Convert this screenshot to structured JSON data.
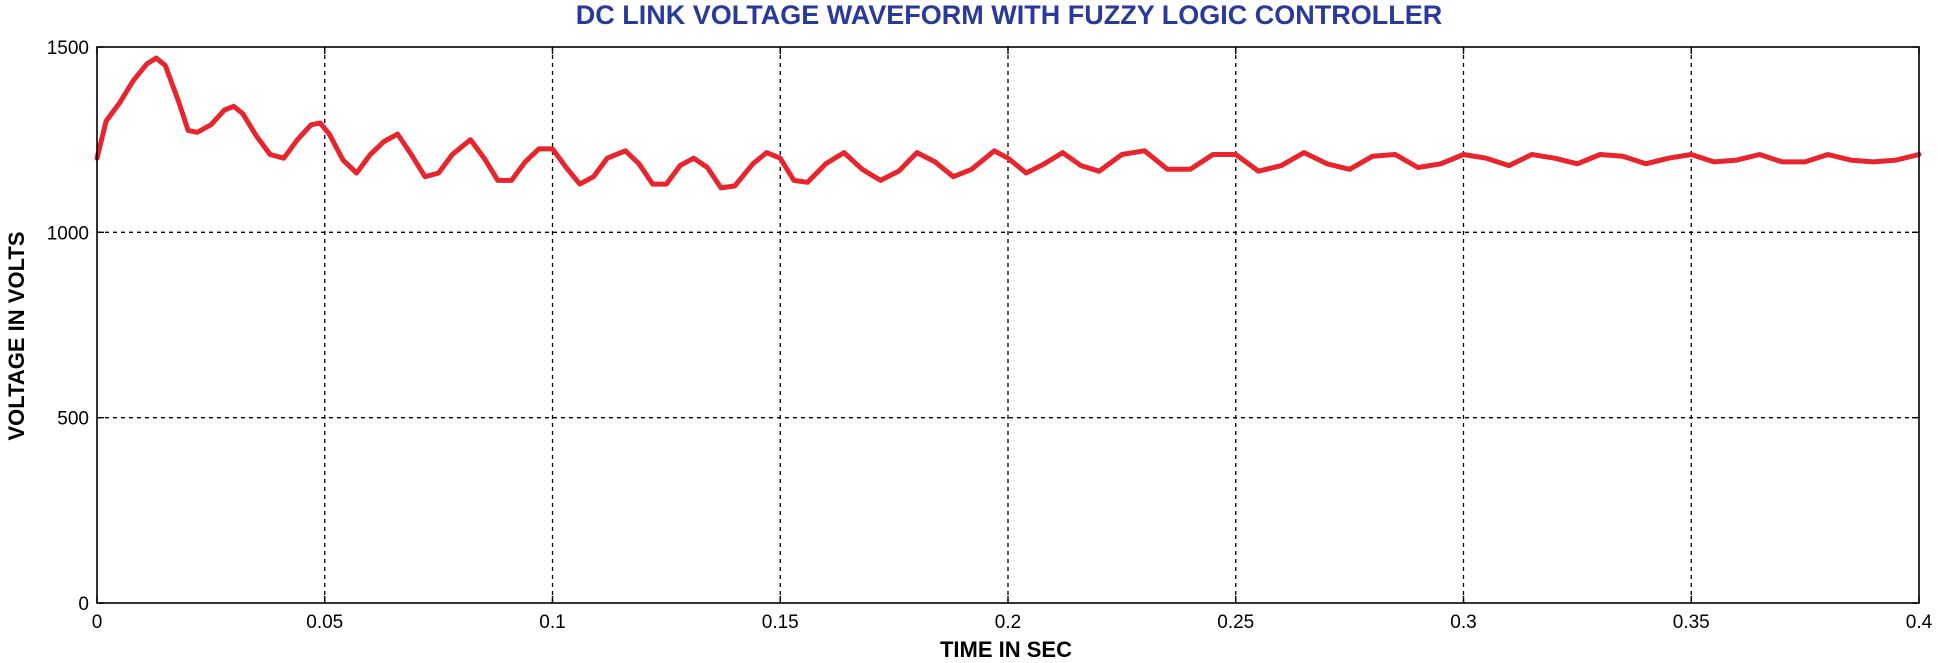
{
  "chart_data": {
    "type": "line",
    "title": "DC LINK VOLTAGE WAVEFORM WITH FUZZY LOGIC CONTROLLER",
    "xlabel": "TIME IN SEC",
    "ylabel": "VOLTAGE IN VOLTS",
    "xlim": [
      0,
      0.4
    ],
    "ylim": [
      0,
      1500
    ],
    "xticks": [
      0,
      0.05,
      0.1,
      0.15,
      0.2,
      0.25,
      0.3,
      0.35,
      0.4
    ],
    "xtick_labels": [
      "0",
      "0.05",
      "0.1",
      "0.15",
      "0.2",
      "0.25",
      "0.3",
      "0.35",
      "0.4"
    ],
    "yticks": [
      0,
      500,
      1000,
      1500
    ],
    "ytick_labels": [
      "0",
      "500",
      "1000",
      "1500"
    ],
    "grid": true,
    "colors": {
      "series": "#e8242c",
      "title": "#2a3a9c"
    },
    "series": [
      {
        "x": [
          0,
          0.002,
          0.005,
          0.008,
          0.011,
          0.013,
          0.015,
          0.018,
          0.02,
          0.022,
          0.025,
          0.028,
          0.03,
          0.032,
          0.035,
          0.038,
          0.041,
          0.044,
          0.047,
          0.049,
          0.051,
          0.054,
          0.057,
          0.06,
          0.063,
          0.066,
          0.069,
          0.072,
          0.075,
          0.078,
          0.082,
          0.085,
          0.088,
          0.091,
          0.094,
          0.097,
          0.1,
          0.103,
          0.106,
          0.109,
          0.112,
          0.116,
          0.119,
          0.122,
          0.125,
          0.128,
          0.131,
          0.134,
          0.137,
          0.14,
          0.144,
          0.147,
          0.15,
          0.153,
          0.156,
          0.16,
          0.164,
          0.168,
          0.172,
          0.176,
          0.18,
          0.184,
          0.188,
          0.192,
          0.197,
          0.2,
          0.204,
          0.208,
          0.212,
          0.216,
          0.22,
          0.225,
          0.23,
          0.235,
          0.24,
          0.245,
          0.25,
          0.255,
          0.26,
          0.265,
          0.27,
          0.275,
          0.28,
          0.285,
          0.29,
          0.295,
          0.3,
          0.305,
          0.31,
          0.315,
          0.32,
          0.325,
          0.33,
          0.335,
          0.34,
          0.345,
          0.35,
          0.355,
          0.36,
          0.365,
          0.37,
          0.375,
          0.38,
          0.385,
          0.39,
          0.395,
          0.4
        ],
        "values": [
          1200,
          1300,
          1350,
          1410,
          1455,
          1470,
          1450,
          1350,
          1275,
          1270,
          1290,
          1330,
          1340,
          1320,
          1260,
          1210,
          1200,
          1250,
          1290,
          1295,
          1265,
          1195,
          1160,
          1210,
          1245,
          1265,
          1210,
          1150,
          1160,
          1210,
          1250,
          1200,
          1140,
          1140,
          1190,
          1225,
          1225,
          1175,
          1130,
          1150,
          1200,
          1220,
          1185,
          1130,
          1130,
          1180,
          1200,
          1175,
          1120,
          1125,
          1185,
          1215,
          1200,
          1140,
          1135,
          1185,
          1215,
          1170,
          1140,
          1165,
          1215,
          1190,
          1150,
          1170,
          1220,
          1200,
          1160,
          1185,
          1215,
          1180,
          1165,
          1210,
          1220,
          1170,
          1170,
          1210,
          1210,
          1165,
          1180,
          1215,
          1185,
          1170,
          1205,
          1210,
          1175,
          1185,
          1210,
          1200,
          1180,
          1210,
          1200,
          1185,
          1210,
          1205,
          1185,
          1200,
          1210,
          1190,
          1195,
          1210,
          1190,
          1190,
          1210,
          1195,
          1190,
          1195,
          1210
        ]
      }
    ]
  }
}
